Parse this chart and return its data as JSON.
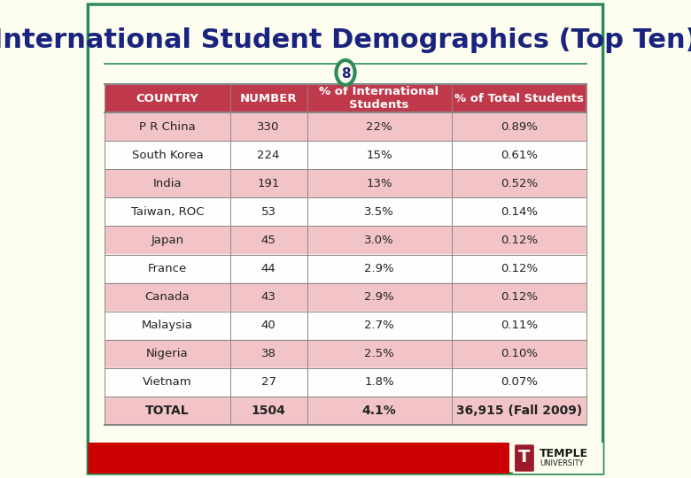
{
  "title": "International Student Demographics (Top Ten)",
  "slide_number": "8",
  "background_color": "#FEFEF0",
  "border_color": "#2E8B57",
  "title_color": "#1a237e",
  "header_bg": "#C0394B",
  "header_text_color": "#FFFFFF",
  "odd_row_bg": "#F2C4C8",
  "even_row_bg": "#FEFEFE",
  "total_row_bg": "#F2C4C8",
  "columns": [
    "COUNTRY",
    "NUMBER",
    "% of International\nStudents",
    "% of Total Students"
  ],
  "rows": [
    [
      "P R China",
      "330",
      "22%",
      "0.89%"
    ],
    [
      "South Korea",
      "224",
      "15%",
      "0.61%"
    ],
    [
      "India",
      "191",
      "13%",
      "0.52%"
    ],
    [
      "Taiwan, ROC",
      "53",
      "3.5%",
      "0.14%"
    ],
    [
      "Japan",
      "45",
      "3.0%",
      "0.12%"
    ],
    [
      "France",
      "44",
      "2.9%",
      "0.12%"
    ],
    [
      "Canada",
      "43",
      "2.9%",
      "0.12%"
    ],
    [
      "Malaysia",
      "40",
      "2.7%",
      "0.11%"
    ],
    [
      "Nigeria",
      "38",
      "2.5%",
      "0.10%"
    ],
    [
      "Vietnam",
      "27",
      "1.8%",
      "0.07%"
    ],
    [
      "TOTAL",
      "1504",
      "4.1%",
      "36,915 (Fall 2009)"
    ]
  ],
  "red_bar_color": "#CC0000",
  "temple_logo_color": "#9B1B2A",
  "circle_color": "#2E8B57",
  "circle_text_color": "#1a237e"
}
